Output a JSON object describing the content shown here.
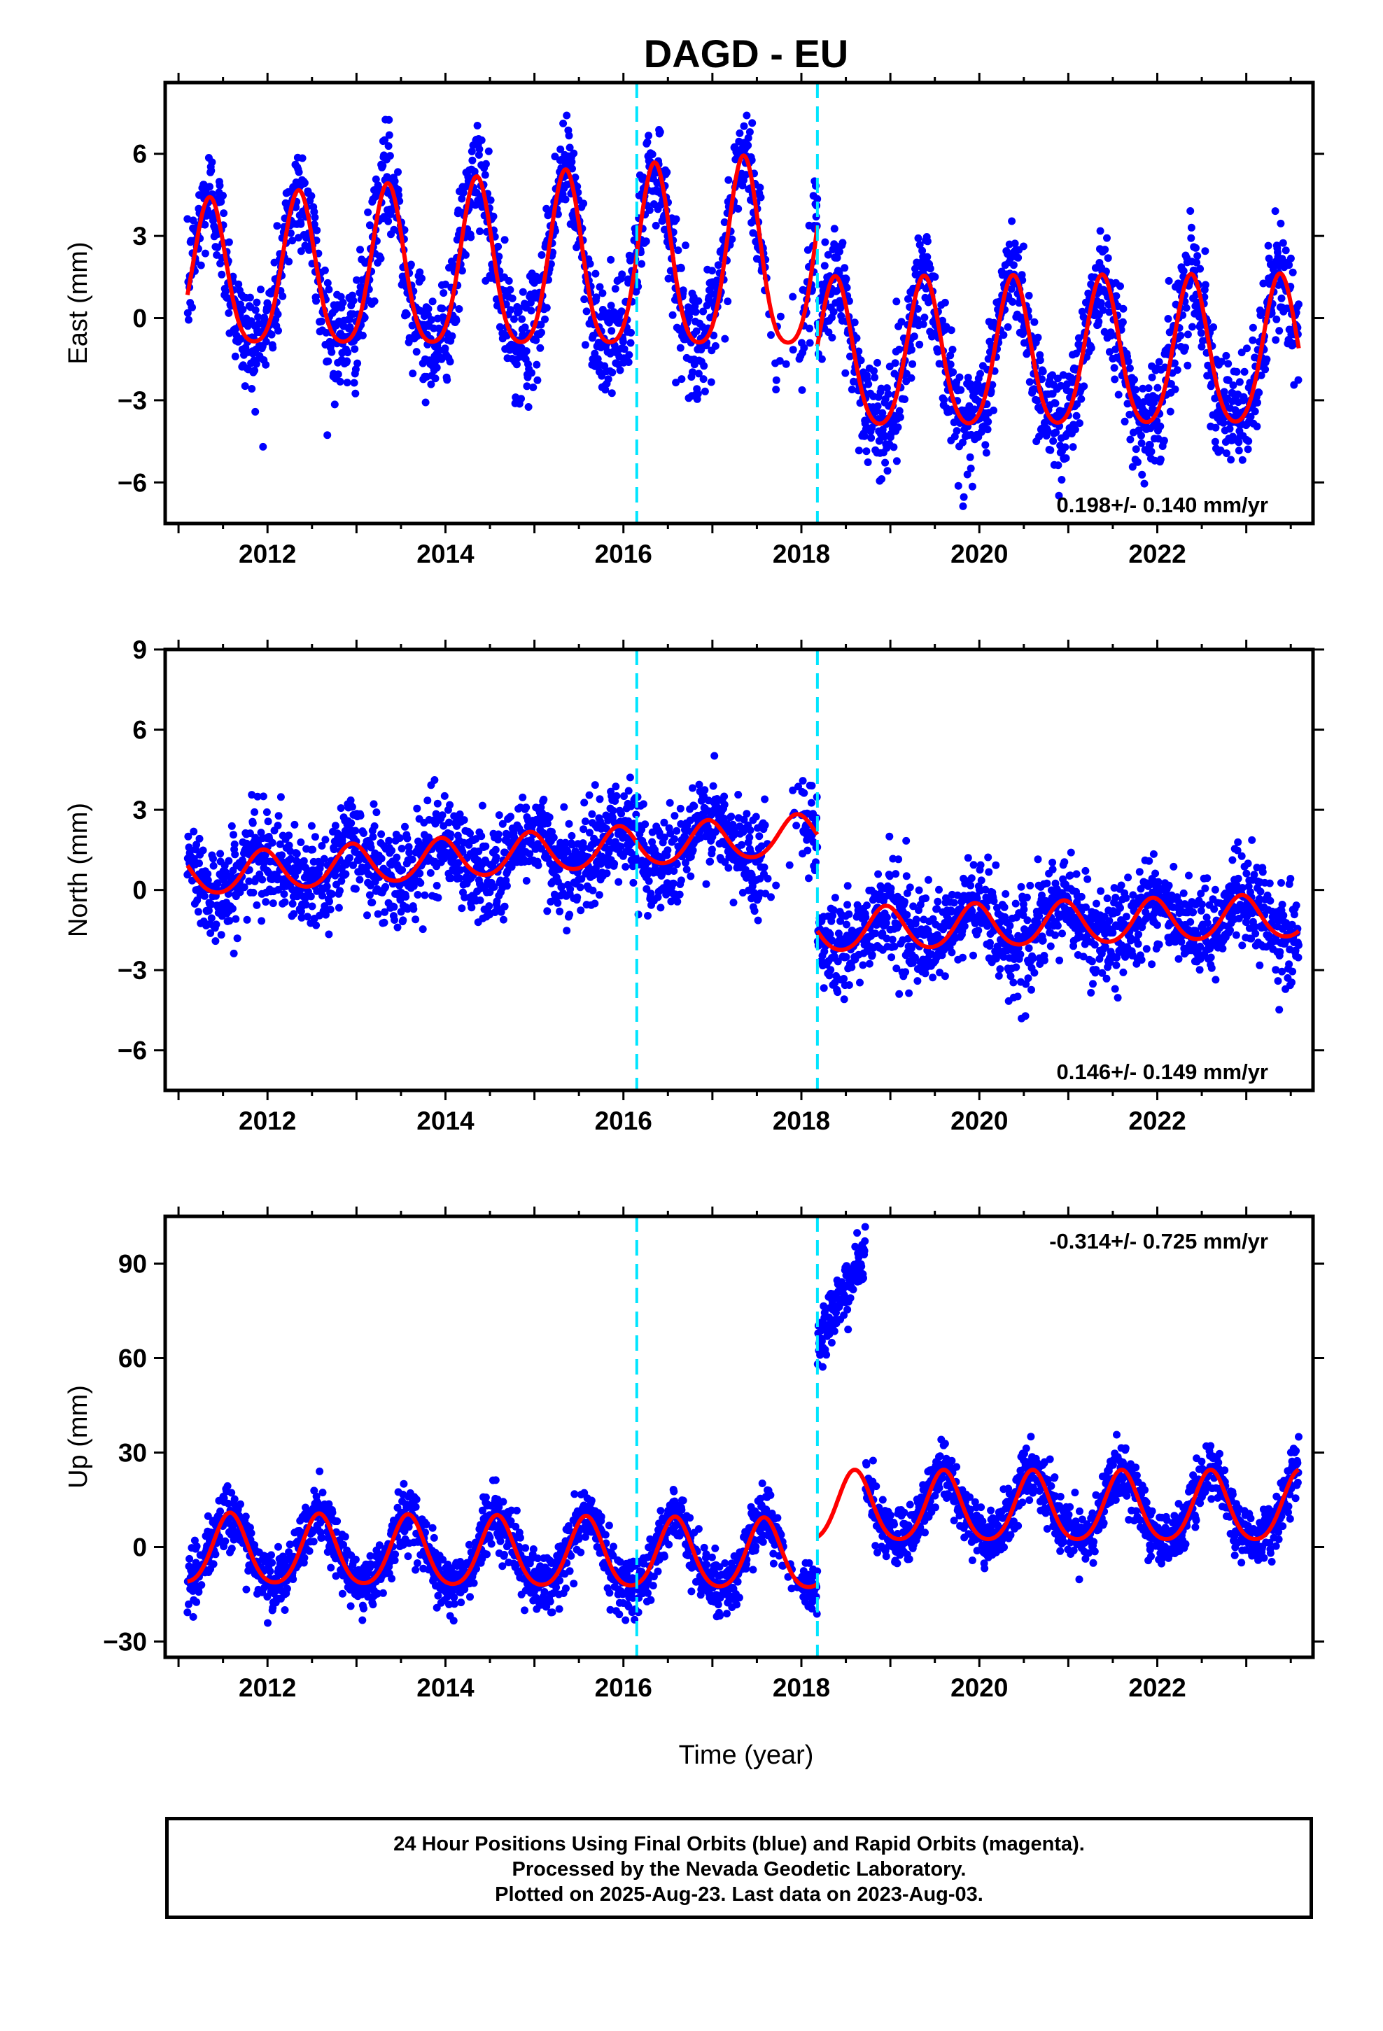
{
  "chart_data": {
    "title": "DAGD - EU",
    "xlabel": "Time (year)",
    "x_range": [
      2010.85,
      2023.75
    ],
    "x_ticks": [
      2012,
      2014,
      2016,
      2018,
      2020,
      2022
    ],
    "offset_lines": [
      2016.15,
      2018.18
    ],
    "colors": {
      "points": "#0000ff",
      "model": "#ff0000",
      "offsets": "#00e5ff",
      "frame": "#000000"
    },
    "data_start": 2011.1,
    "data_end": 2023.59,
    "panels": [
      {
        "type": "scatter",
        "ylabel": "East (mm)",
        "ylim": [
          -7.5,
          8.6
        ],
        "y_ticks": [
          -6,
          -3,
          0,
          3,
          6
        ],
        "rate_text": "0.198+/- 0.140 mm/yr",
        "rate_position": "bottom-right",
        "model": {
          "segments": [
            {
              "x": [
                2011.1,
                2018.18
              ],
              "offset": 1.3,
              "trend": 0.1,
              "amplitude": 2.6,
              "amp_growth": 0.05,
              "peak": 2011.35,
              "semi": 0.5,
              "noise": 1.0
            },
            {
              "x": [
                2018.18,
                2023.59
              ],
              "offset": -1.55,
              "trend": 0.02,
              "amplitude": 2.7,
              "amp_growth": 0.0,
              "peak": 2018.38,
              "semi": 0.4,
              "noise": 1.0
            }
          ],
          "gap": [
            2017.6,
            2018.0
          ]
        }
      },
      {
        "type": "scatter",
        "ylabel": "North (mm)",
        "ylim": [
          -7.5,
          9.0
        ],
        "y_ticks": [
          -6,
          -3,
          0,
          3,
          6,
          9
        ],
        "rate_text": "0.146+/- 0.149 mm/yr",
        "rate_position": "bottom-right",
        "model": {
          "segments": [
            {
              "x": [
                2011.1,
                2018.18
              ],
              "offset": 0.5,
              "trend": 0.22,
              "amplitude": 0.75,
              "amp_growth": 0.0,
              "peak": 2011.95,
              "semi": 0.3,
              "noise": 0.9
            },
            {
              "x": [
                2018.18,
                2023.59
              ],
              "offset": -1.55,
              "trend": 0.1,
              "amplitude": 0.8,
              "amp_growth": 0.0,
              "peak": 2018.95,
              "semi": 0.3,
              "noise": 0.9
            }
          ],
          "gap": [
            2017.6,
            2018.0
          ]
        }
      },
      {
        "type": "scatter",
        "ylabel": "Up (mm)",
        "ylim": [
          -35,
          105
        ],
        "y_ticks": [
          -30,
          0,
          30,
          60,
          90
        ],
        "rate_text": "-0.314+/- 0.725 mm/yr",
        "rate_position": "top-right",
        "model": {
          "segments": [
            {
              "x": [
                2011.1,
                2018.18
              ],
              "offset": -1.5,
              "trend": -0.25,
              "amplitude": 11.0,
              "amp_growth": 0.0,
              "peak": 2011.58,
              "semi": 0.4,
              "noise": 4.5
            },
            {
              "x": [
                2018.18,
                2023.59
              ],
              "offset": 12.0,
              "trend": 0.0,
              "amplitude": 11.0,
              "amp_growth": 0.0,
              "peak": 2018.6,
              "semi": 0.4,
              "noise": 4.5
            }
          ],
          "gap": [
            2017.8,
            2018.0
          ],
          "anomaly": {
            "x": [
              2018.18,
              2018.72
            ],
            "y": [
              65,
              102
            ]
          }
        }
      }
    ]
  },
  "caption": {
    "line1": "24 Hour Positions Using Final Orbits (blue) and Rapid Orbits (magenta).",
    "line2": "Processed by the Nevada Geodetic Laboratory.",
    "line3": "Plotted on 2025-Aug-23. Last data on 2023-Aug-03."
  }
}
